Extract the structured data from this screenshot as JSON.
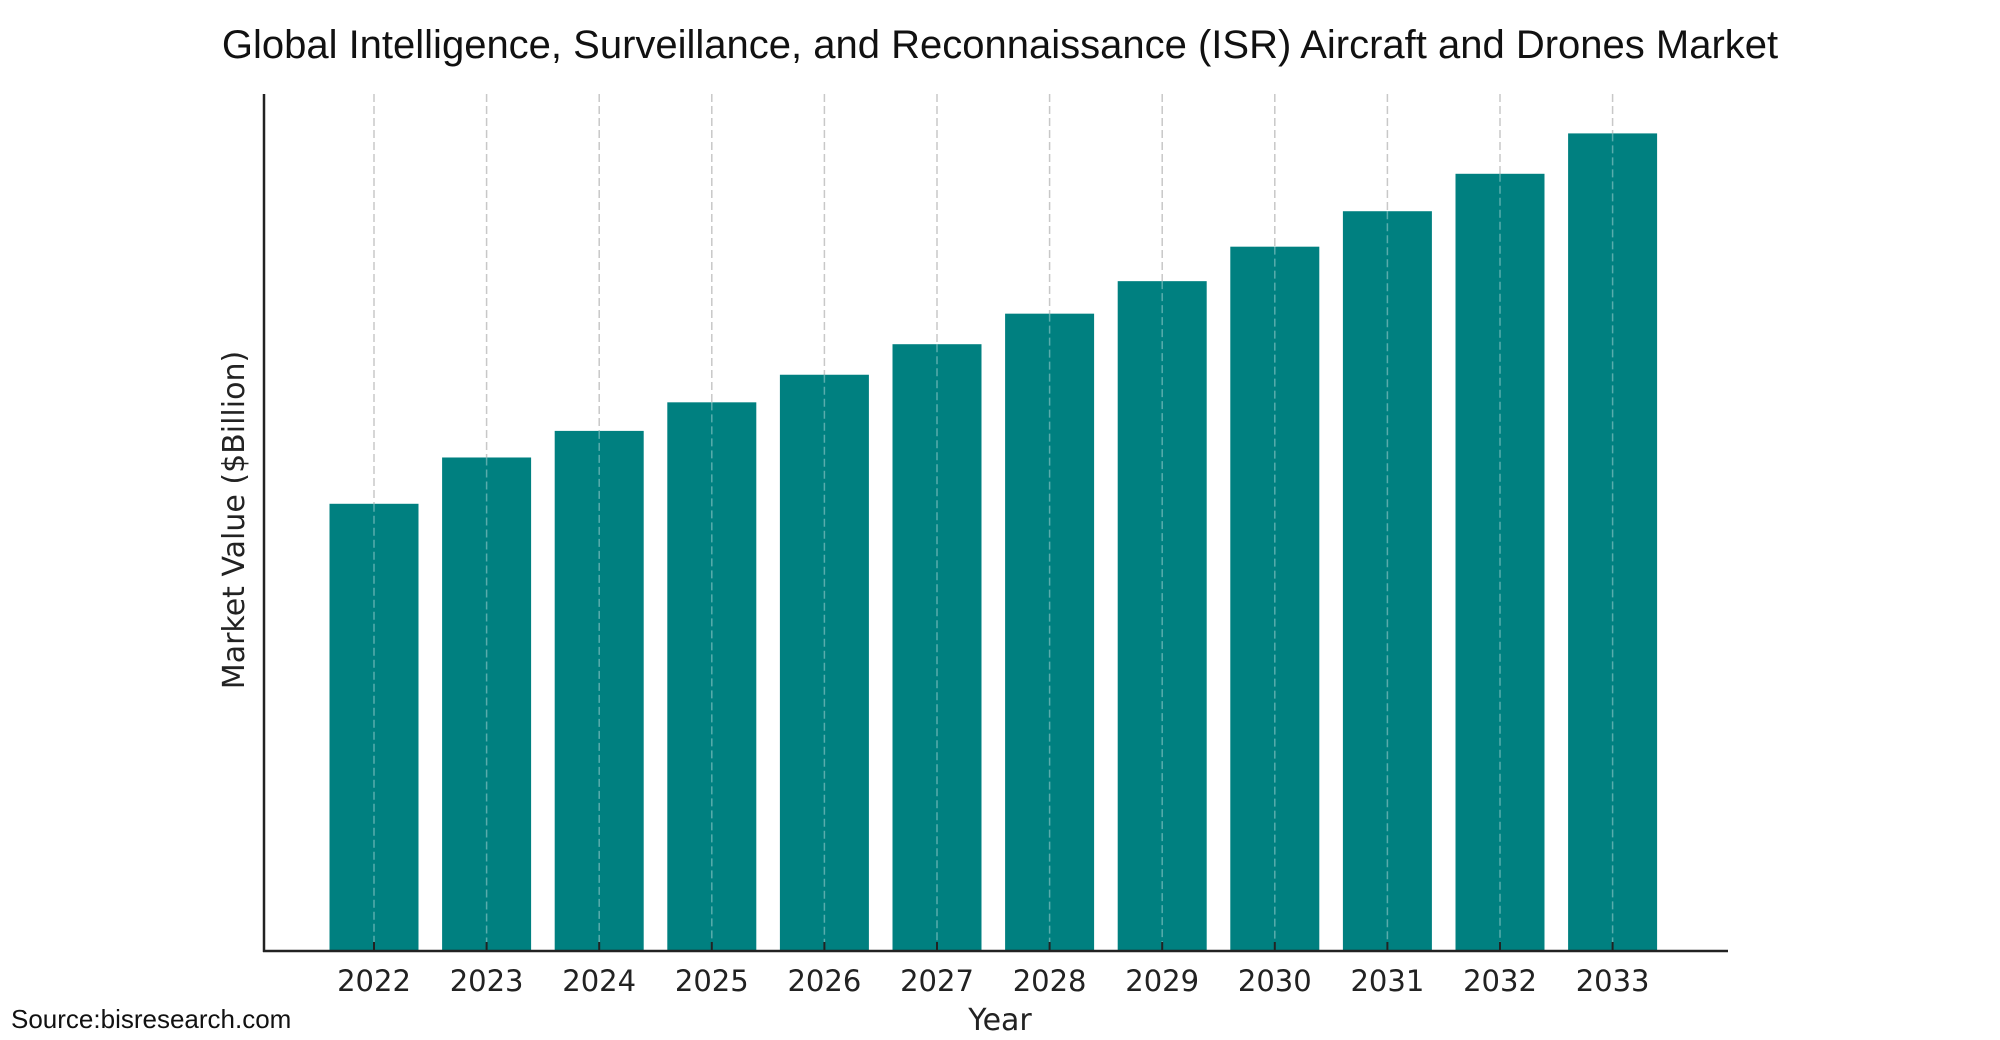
{
  "chart_data": {
    "type": "bar",
    "title": "Global Intelligence, Surveillance, and Reconnaissance (ISR) Aircraft and Drones Market",
    "xlabel": "Year",
    "ylabel": "Market Value ($Billion)",
    "categories": [
      "2022",
      "2023",
      "2024",
      "2025",
      "2026",
      "2027",
      "2028",
      "2029",
      "2030",
      "2031",
      "2032",
      "2033"
    ],
    "values": [
      4.54,
      5.01,
      5.28,
      5.57,
      5.85,
      6.16,
      6.47,
      6.8,
      7.15,
      7.51,
      7.89,
      8.3
    ],
    "value_note": "relative values; y-axis has no tick labels",
    "ylim": [
      0,
      8.7
    ],
    "grid": "vertical dashed",
    "bar_color": "#008080",
    "grid_color": "#c8c8c8",
    "legend": "none"
  },
  "source": "Source:bisresearch.com"
}
